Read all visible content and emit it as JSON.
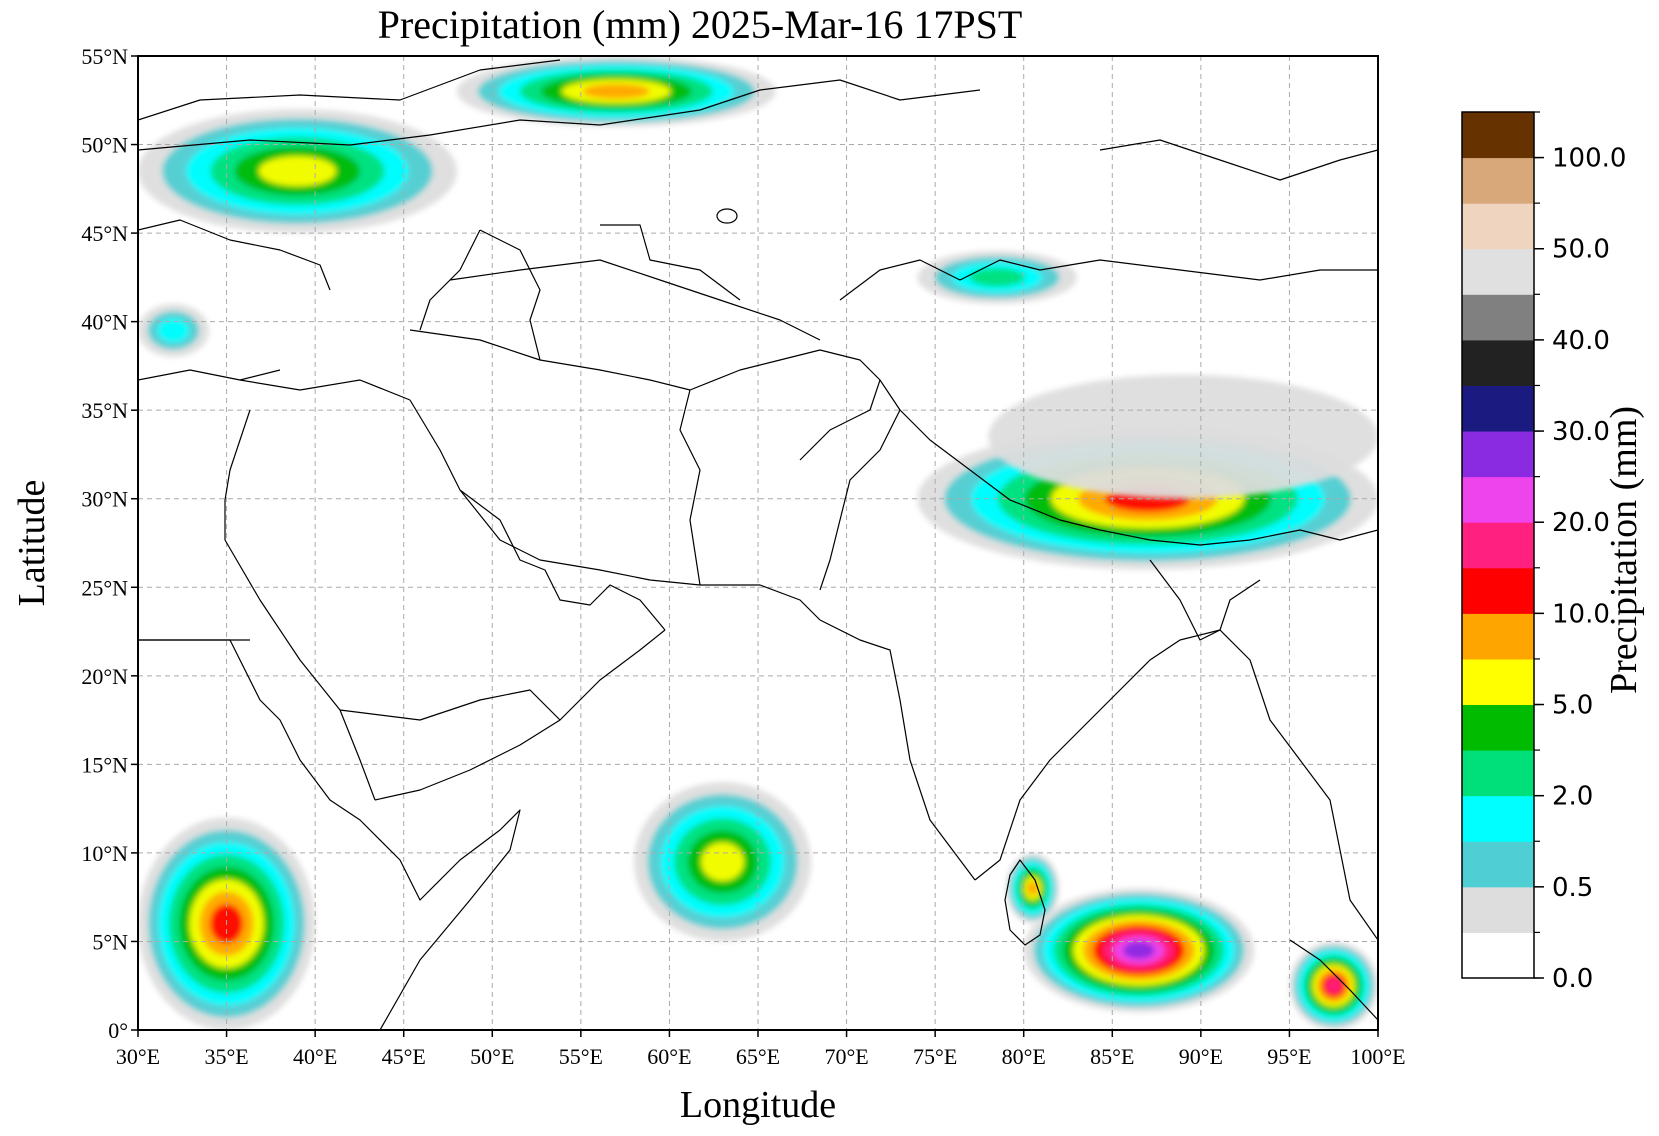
{
  "title": "Precipitation (mm)  2025-Mar-16 17PST",
  "xlabel": "Longitude",
  "ylabel": "Latitude",
  "map": {
    "lon_range": [
      30,
      100
    ],
    "lat_range": [
      0,
      55
    ],
    "lon_ticks": [
      {
        "value": 30,
        "label": "30°E"
      },
      {
        "value": 35,
        "label": "35°E"
      },
      {
        "value": 40,
        "label": "40°E"
      },
      {
        "value": 45,
        "label": "45°E"
      },
      {
        "value": 50,
        "label": "50°E"
      },
      {
        "value": 55,
        "label": "55°E"
      },
      {
        "value": 60,
        "label": "60°E"
      },
      {
        "value": 65,
        "label": "65°E"
      },
      {
        "value": 70,
        "label": "70°E"
      },
      {
        "value": 75,
        "label": "75°E"
      },
      {
        "value": 80,
        "label": "80°E"
      },
      {
        "value": 85,
        "label": "85°E"
      },
      {
        "value": 90,
        "label": "90°E"
      },
      {
        "value": 95,
        "label": "95°E"
      },
      {
        "value": 100,
        "label": "100°E"
      }
    ],
    "lat_ticks": [
      {
        "value": 0,
        "label": "0°"
      },
      {
        "value": 5,
        "label": "5°N"
      },
      {
        "value": 10,
        "label": "10°N"
      },
      {
        "value": 15,
        "label": "15°N"
      },
      {
        "value": 20,
        "label": "20°N"
      },
      {
        "value": 25,
        "label": "25°N"
      },
      {
        "value": 30,
        "label": "30°N"
      },
      {
        "value": 35,
        "label": "35°N"
      },
      {
        "value": 40,
        "label": "40°N"
      },
      {
        "value": 45,
        "label": "45°N"
      },
      {
        "value": 50,
        "label": "50°N"
      },
      {
        "value": 55,
        "label": "55°N"
      }
    ],
    "grid": true
  },
  "colorbar": {
    "title": "Precipitation (mm)",
    "colors": [
      "#ffffff",
      "#dddddd",
      "#4fcfd3",
      "#00ffff",
      "#00e07a",
      "#00bb00",
      "#ffff00",
      "#ffa500",
      "#ff0000",
      "#ff2080",
      "#ee44ee",
      "#8a2be2",
      "#1a1a80",
      "#222222",
      "#808080",
      "#e0e0e0",
      "#efd5bf",
      "#d8a77a",
      "#663300"
    ],
    "labels": [
      {
        "index": 0,
        "label": "0.0"
      },
      {
        "index": 2,
        "label": "0.5"
      },
      {
        "index": 4,
        "label": "2.0"
      },
      {
        "index": 6,
        "label": "5.0"
      },
      {
        "index": 8,
        "label": "10.0"
      },
      {
        "index": 10,
        "label": "20.0"
      },
      {
        "index": 12,
        "label": "30.0"
      },
      {
        "index": 14,
        "label": "40.0"
      },
      {
        "index": 16,
        "label": "50.0"
      },
      {
        "index": 18,
        "label": "100.0"
      }
    ]
  },
  "precip_cells": [
    {
      "region": "northwest-band",
      "lon": [
        30,
        48
      ],
      "lat": [
        45,
        52
      ],
      "level": 6
    },
    {
      "region": "northwest-band-east",
      "lon": [
        48,
        66
      ],
      "lat": [
        51,
        55
      ],
      "level": 7
    },
    {
      "region": "himalaya",
      "lon": [
        74,
        100
      ],
      "lat": [
        26,
        34
      ],
      "level": 8
    },
    {
      "region": "tibet-light",
      "lon": [
        78,
        100
      ],
      "lat": [
        30,
        37
      ],
      "level": 1
    },
    {
      "region": "tianshan",
      "lon": [
        74,
        83
      ],
      "lat": [
        41,
        44
      ],
      "level": 4
    },
    {
      "region": "arabian-sea-west",
      "lon": [
        58,
        68
      ],
      "lat": [
        5,
        14
      ],
      "level": 6
    },
    {
      "region": "bay-of-bengal-south",
      "lon": [
        80,
        93
      ],
      "lat": [
        1,
        8
      ],
      "level": 11
    },
    {
      "region": "sri-lanka",
      "lon": [
        79,
        82
      ],
      "lat": [
        6,
        10
      ],
      "level": 7
    },
    {
      "region": "andaman-sea",
      "lon": [
        95,
        100
      ],
      "lat": [
        0,
        5
      ],
      "level": 9
    },
    {
      "region": "east-africa",
      "lon": [
        30,
        40
      ],
      "lat": [
        0,
        12
      ],
      "level": 8
    },
    {
      "region": "caucasus-west",
      "lon": [
        30,
        34
      ],
      "lat": [
        38,
        41
      ],
      "level": 3
    }
  ]
}
